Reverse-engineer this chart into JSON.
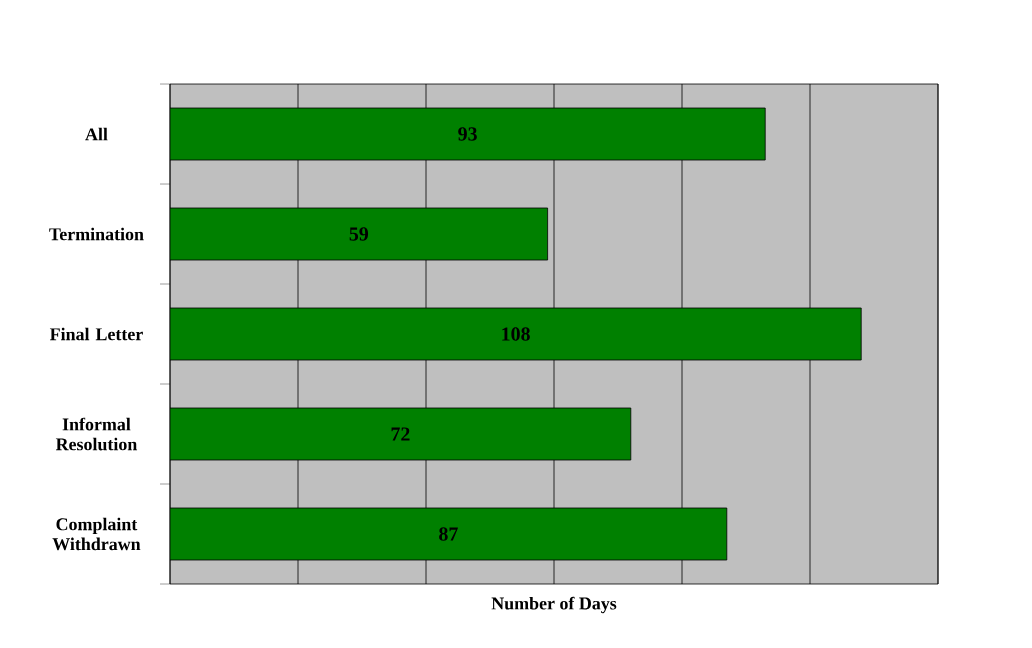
{
  "chart_data": {
    "type": "bar",
    "orientation": "horizontal",
    "xlabel": "Number of Days",
    "categories": [
      "All",
      "Termination",
      "Final Letter",
      "Informal Resolution",
      "Complaint Withdrawn"
    ],
    "values": [
      93,
      59,
      108,
      72,
      87
    ],
    "color": "#008000",
    "data_labels": true,
    "xlim": [
      0,
      120
    ],
    "xticks": [
      {
        "value": 0,
        "label": null
      },
      {
        "value": 20,
        "label": null
      },
      {
        "value": 40,
        "label": null
      },
      {
        "value": 60,
        "label": null
      },
      {
        "value": 80,
        "label": null
      },
      {
        "value": 100,
        "label": null
      },
      {
        "value": 120,
        "label": null
      }
    ],
    "tick_labels": "y",
    "grid": "x"
  }
}
